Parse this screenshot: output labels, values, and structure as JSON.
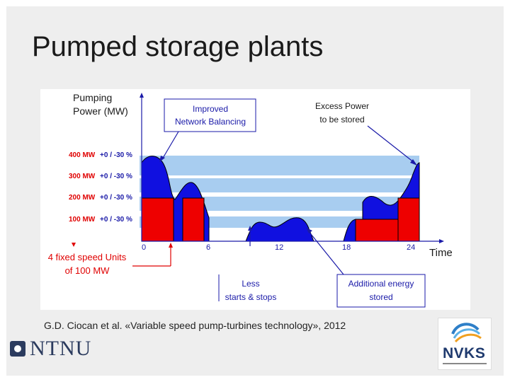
{
  "slide": {
    "title": "Pumped storage plants",
    "caption": "G.D. Ciocan et al. «Variable speed pump-turbines technology», 2012"
  },
  "figure": {
    "y_axis_label_line1": "Pumping",
    "y_axis_label_line2": "Power (MW)",
    "x_axis_label": "Time",
    "x_ticks": [
      "0",
      "6",
      "12",
      "18",
      "24"
    ],
    "levels": [
      {
        "mw": "400 MW",
        "range": "+0 / -30 %"
      },
      {
        "mw": "300 MW",
        "range": "+0 / -30 %"
      },
      {
        "mw": "200 MW",
        "range": "+0 / -30 %"
      },
      {
        "mw": "100 MW",
        "range": "+0 / -30 %"
      }
    ],
    "callouts": {
      "improved_line1": "Improved",
      "improved_line2": "Network Balancing",
      "excess_line1": "Excess Power",
      "excess_line2": "to be stored",
      "fixed_line1": "4 fixed speed Units",
      "fixed_line2": "of 100 MW",
      "less_line1": "Less",
      "less_line2": "starts & stops",
      "additional_line1": "Additional energy",
      "additional_line2": "stored"
    },
    "colors": {
      "blue_fill": "#1010e0",
      "red_fill": "#ee0000",
      "band_fill": "#a8cdf0",
      "label_red": "#e00000",
      "label_blue": "#1a1aa8",
      "callout_text": "#1a1aa8"
    }
  },
  "logos": {
    "ntnu": "NTNU",
    "nvks": "NVKS"
  }
}
